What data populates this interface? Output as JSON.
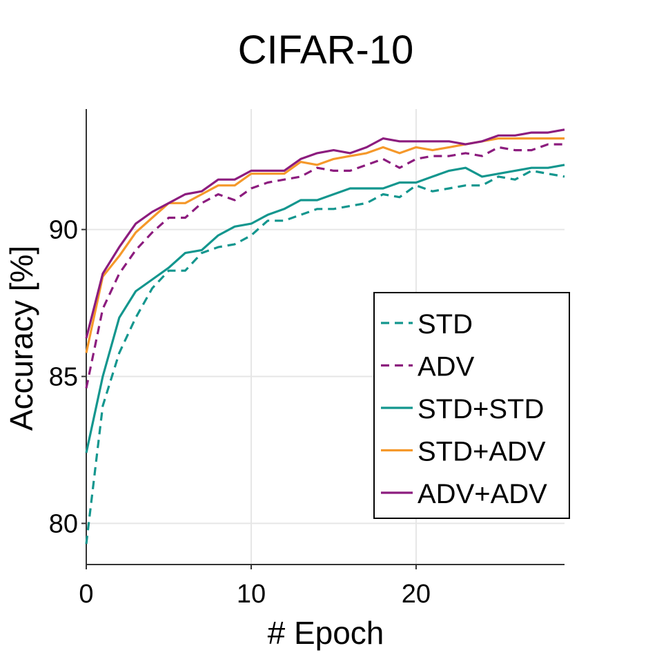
{
  "chart_data": {
    "type": "line",
    "title": "CIFAR-10",
    "xlabel": "# Epoch",
    "ylabel": "Accuracy [%]",
    "xlim": [
      0,
      29
    ],
    "ylim": [
      78.6,
      94.1
    ],
    "xticks": [
      0,
      10,
      20
    ],
    "yticks": [
      80,
      85,
      90
    ],
    "grid": true,
    "legend_position": "lower-right",
    "x": [
      0,
      1,
      2,
      3,
      4,
      5,
      6,
      7,
      8,
      9,
      10,
      11,
      12,
      13,
      14,
      15,
      16,
      17,
      18,
      19,
      20,
      21,
      22,
      23,
      24,
      25,
      26,
      27,
      28,
      29
    ],
    "series": [
      {
        "name": "STD",
        "color": "#13968e",
        "dash": "dashed",
        "values": [
          79.3,
          84.0,
          85.8,
          87.0,
          88.0,
          88.6,
          88.6,
          89.2,
          89.4,
          89.5,
          89.8,
          90.3,
          90.3,
          90.5,
          90.7,
          90.7,
          90.8,
          90.9,
          91.2,
          91.1,
          91.5,
          91.3,
          91.4,
          91.5,
          91.5,
          91.8,
          91.7,
          92.0,
          91.9,
          91.8
        ]
      },
      {
        "name": "ADV",
        "color": "#8c1c7e",
        "dash": "dashed",
        "values": [
          84.6,
          87.3,
          88.5,
          89.3,
          89.9,
          90.4,
          90.4,
          90.9,
          91.2,
          91.0,
          91.4,
          91.6,
          91.7,
          91.8,
          92.1,
          92.0,
          92.0,
          92.2,
          92.4,
          92.1,
          92.4,
          92.5,
          92.5,
          92.6,
          92.5,
          92.8,
          92.7,
          92.7,
          92.9,
          92.9
        ]
      },
      {
        "name": "STD+STD",
        "color": "#13968e",
        "dash": "solid",
        "values": [
          82.4,
          85.0,
          87.0,
          87.9,
          88.3,
          88.7,
          89.2,
          89.3,
          89.8,
          90.1,
          90.2,
          90.5,
          90.7,
          91.0,
          91.0,
          91.2,
          91.4,
          91.4,
          91.4,
          91.6,
          91.6,
          91.8,
          92.0,
          92.1,
          91.8,
          91.9,
          92.0,
          92.1,
          92.1,
          92.2
        ]
      },
      {
        "name": "STD+ADV",
        "color": "#f5982a",
        "dash": "solid",
        "values": [
          85.8,
          88.4,
          89.1,
          89.9,
          90.4,
          90.9,
          90.9,
          91.2,
          91.5,
          91.5,
          91.9,
          91.9,
          91.9,
          92.3,
          92.2,
          92.4,
          92.5,
          92.6,
          92.8,
          92.6,
          92.8,
          92.7,
          92.8,
          92.9,
          93.0,
          93.1,
          93.1,
          93.1,
          93.1,
          93.1
        ]
      },
      {
        "name": "ADV+ADV",
        "color": "#8c1c7e",
        "dash": "solid",
        "values": [
          86.3,
          88.5,
          89.4,
          90.2,
          90.6,
          90.9,
          91.2,
          91.3,
          91.7,
          91.7,
          92.0,
          92.0,
          92.0,
          92.4,
          92.6,
          92.7,
          92.6,
          92.8,
          93.1,
          93.0,
          93.0,
          93.0,
          93.0,
          92.9,
          93.0,
          93.2,
          93.2,
          93.3,
          93.3,
          93.4
        ]
      }
    ]
  }
}
